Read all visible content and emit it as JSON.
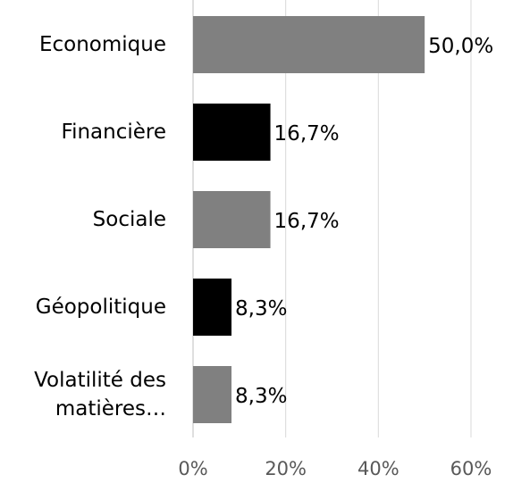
{
  "chart_data": {
    "type": "barh",
    "categories": [
      "Economique",
      "Financière",
      "Sociale",
      "Géopolitique",
      "Volatilité des matières…"
    ],
    "values": [
      50.0,
      16.7,
      16.7,
      8.3,
      8.3
    ],
    "value_labels": [
      "50,0%",
      "16,7%",
      "16,7%",
      "8,3%",
      "8,3%"
    ],
    "colors": [
      "#808080",
      "#000000",
      "#808080",
      "#000000",
      "#808080"
    ],
    "xlim": [
      0,
      60
    ],
    "xticks": [
      {
        "value": 0,
        "label": "0%"
      },
      {
        "value": 20,
        "label": "20%"
      },
      {
        "value": 40,
        "label": "40%"
      },
      {
        "value": 60,
        "label": "60%"
      }
    ],
    "grid": true
  }
}
